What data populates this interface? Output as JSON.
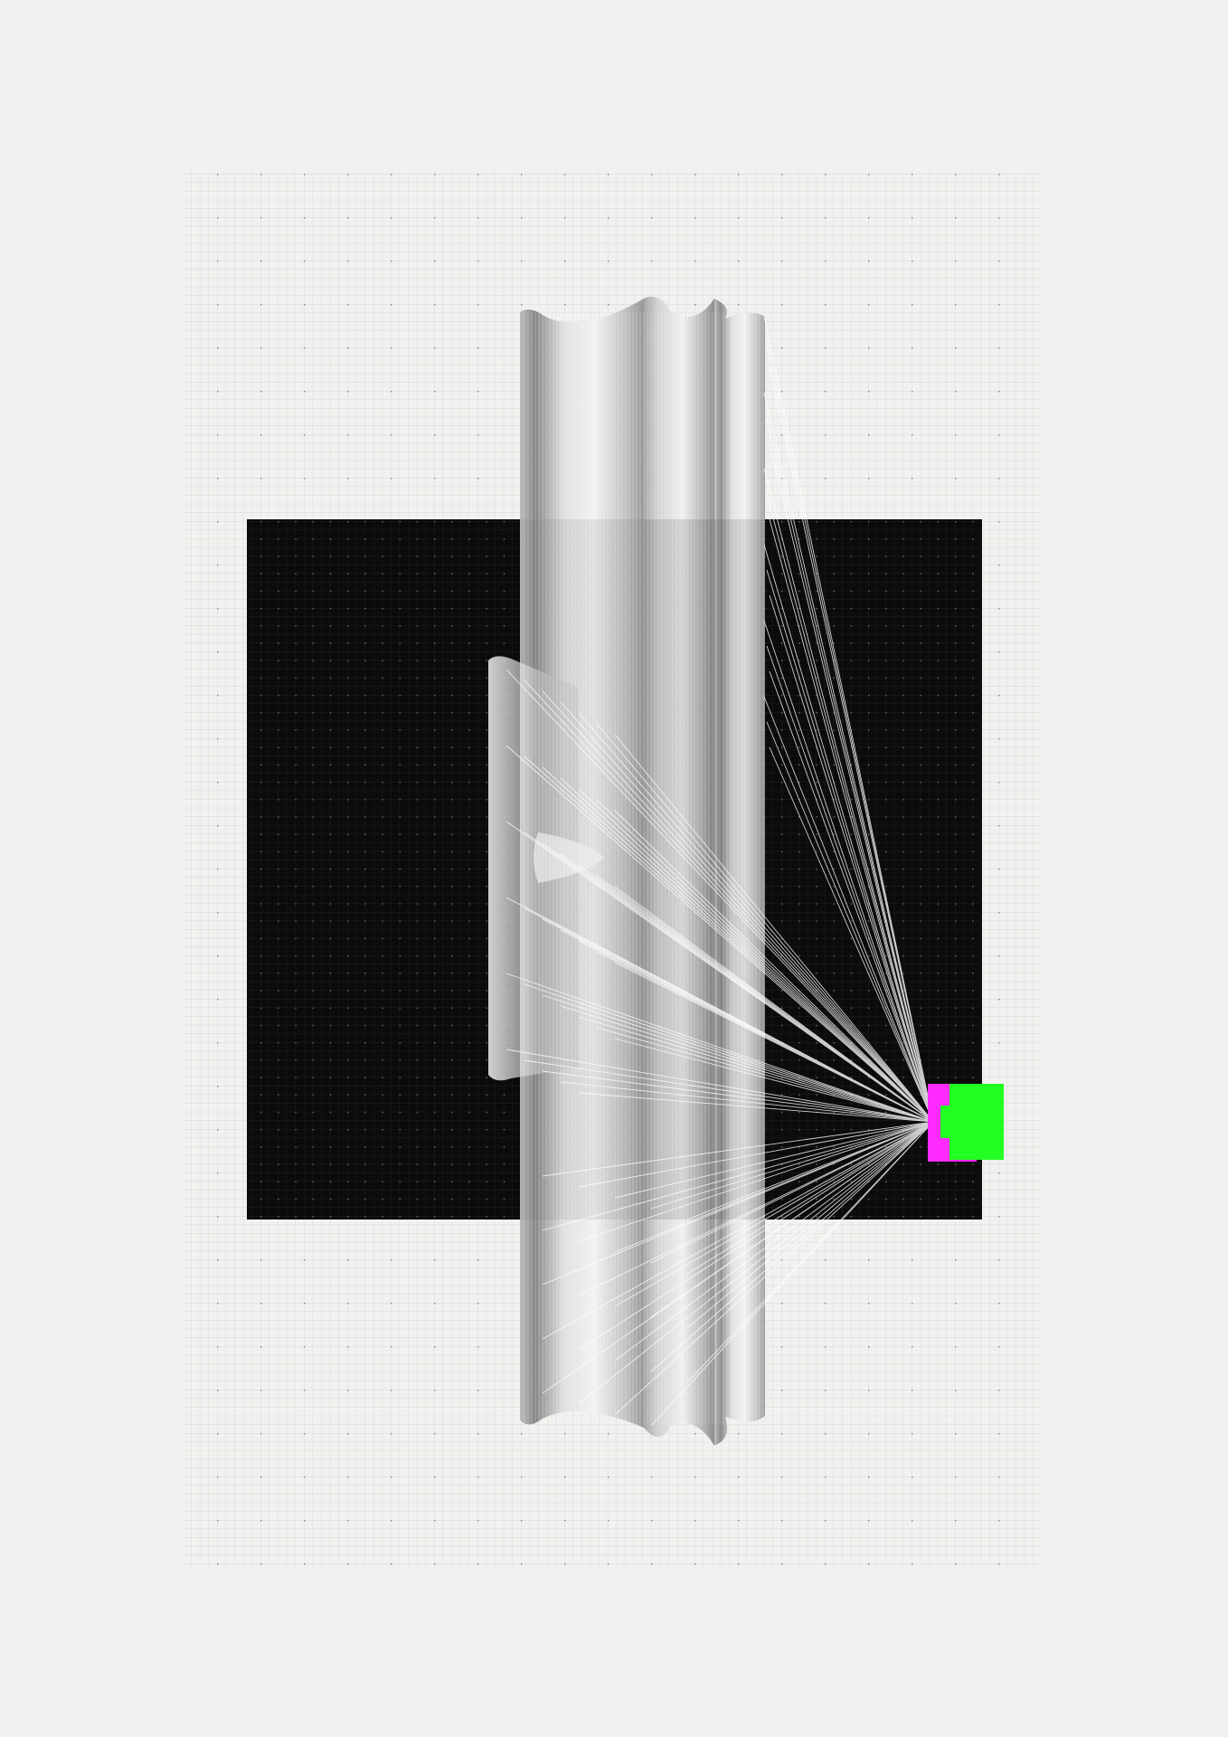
{
  "artwork": {
    "kind": "generative-geometric-composition",
    "palette": {
      "paper": "#f1f1ef",
      "paper_grid": "#c9c9c6",
      "dark_panel": "#0b0b0b",
      "dark_grid": "#2a2a2a",
      "pillar_light": "#e0e0e0",
      "pillar_dark": "#8a8a8a",
      "strand": "#ffffff",
      "accent_magenta": "#ff2bff",
      "accent_green": "#22ff22"
    },
    "elements": [
      "dotted-grid-background",
      "dark-square-panel",
      "translucent-pillars",
      "ray-fan",
      "accent-block"
    ]
  }
}
